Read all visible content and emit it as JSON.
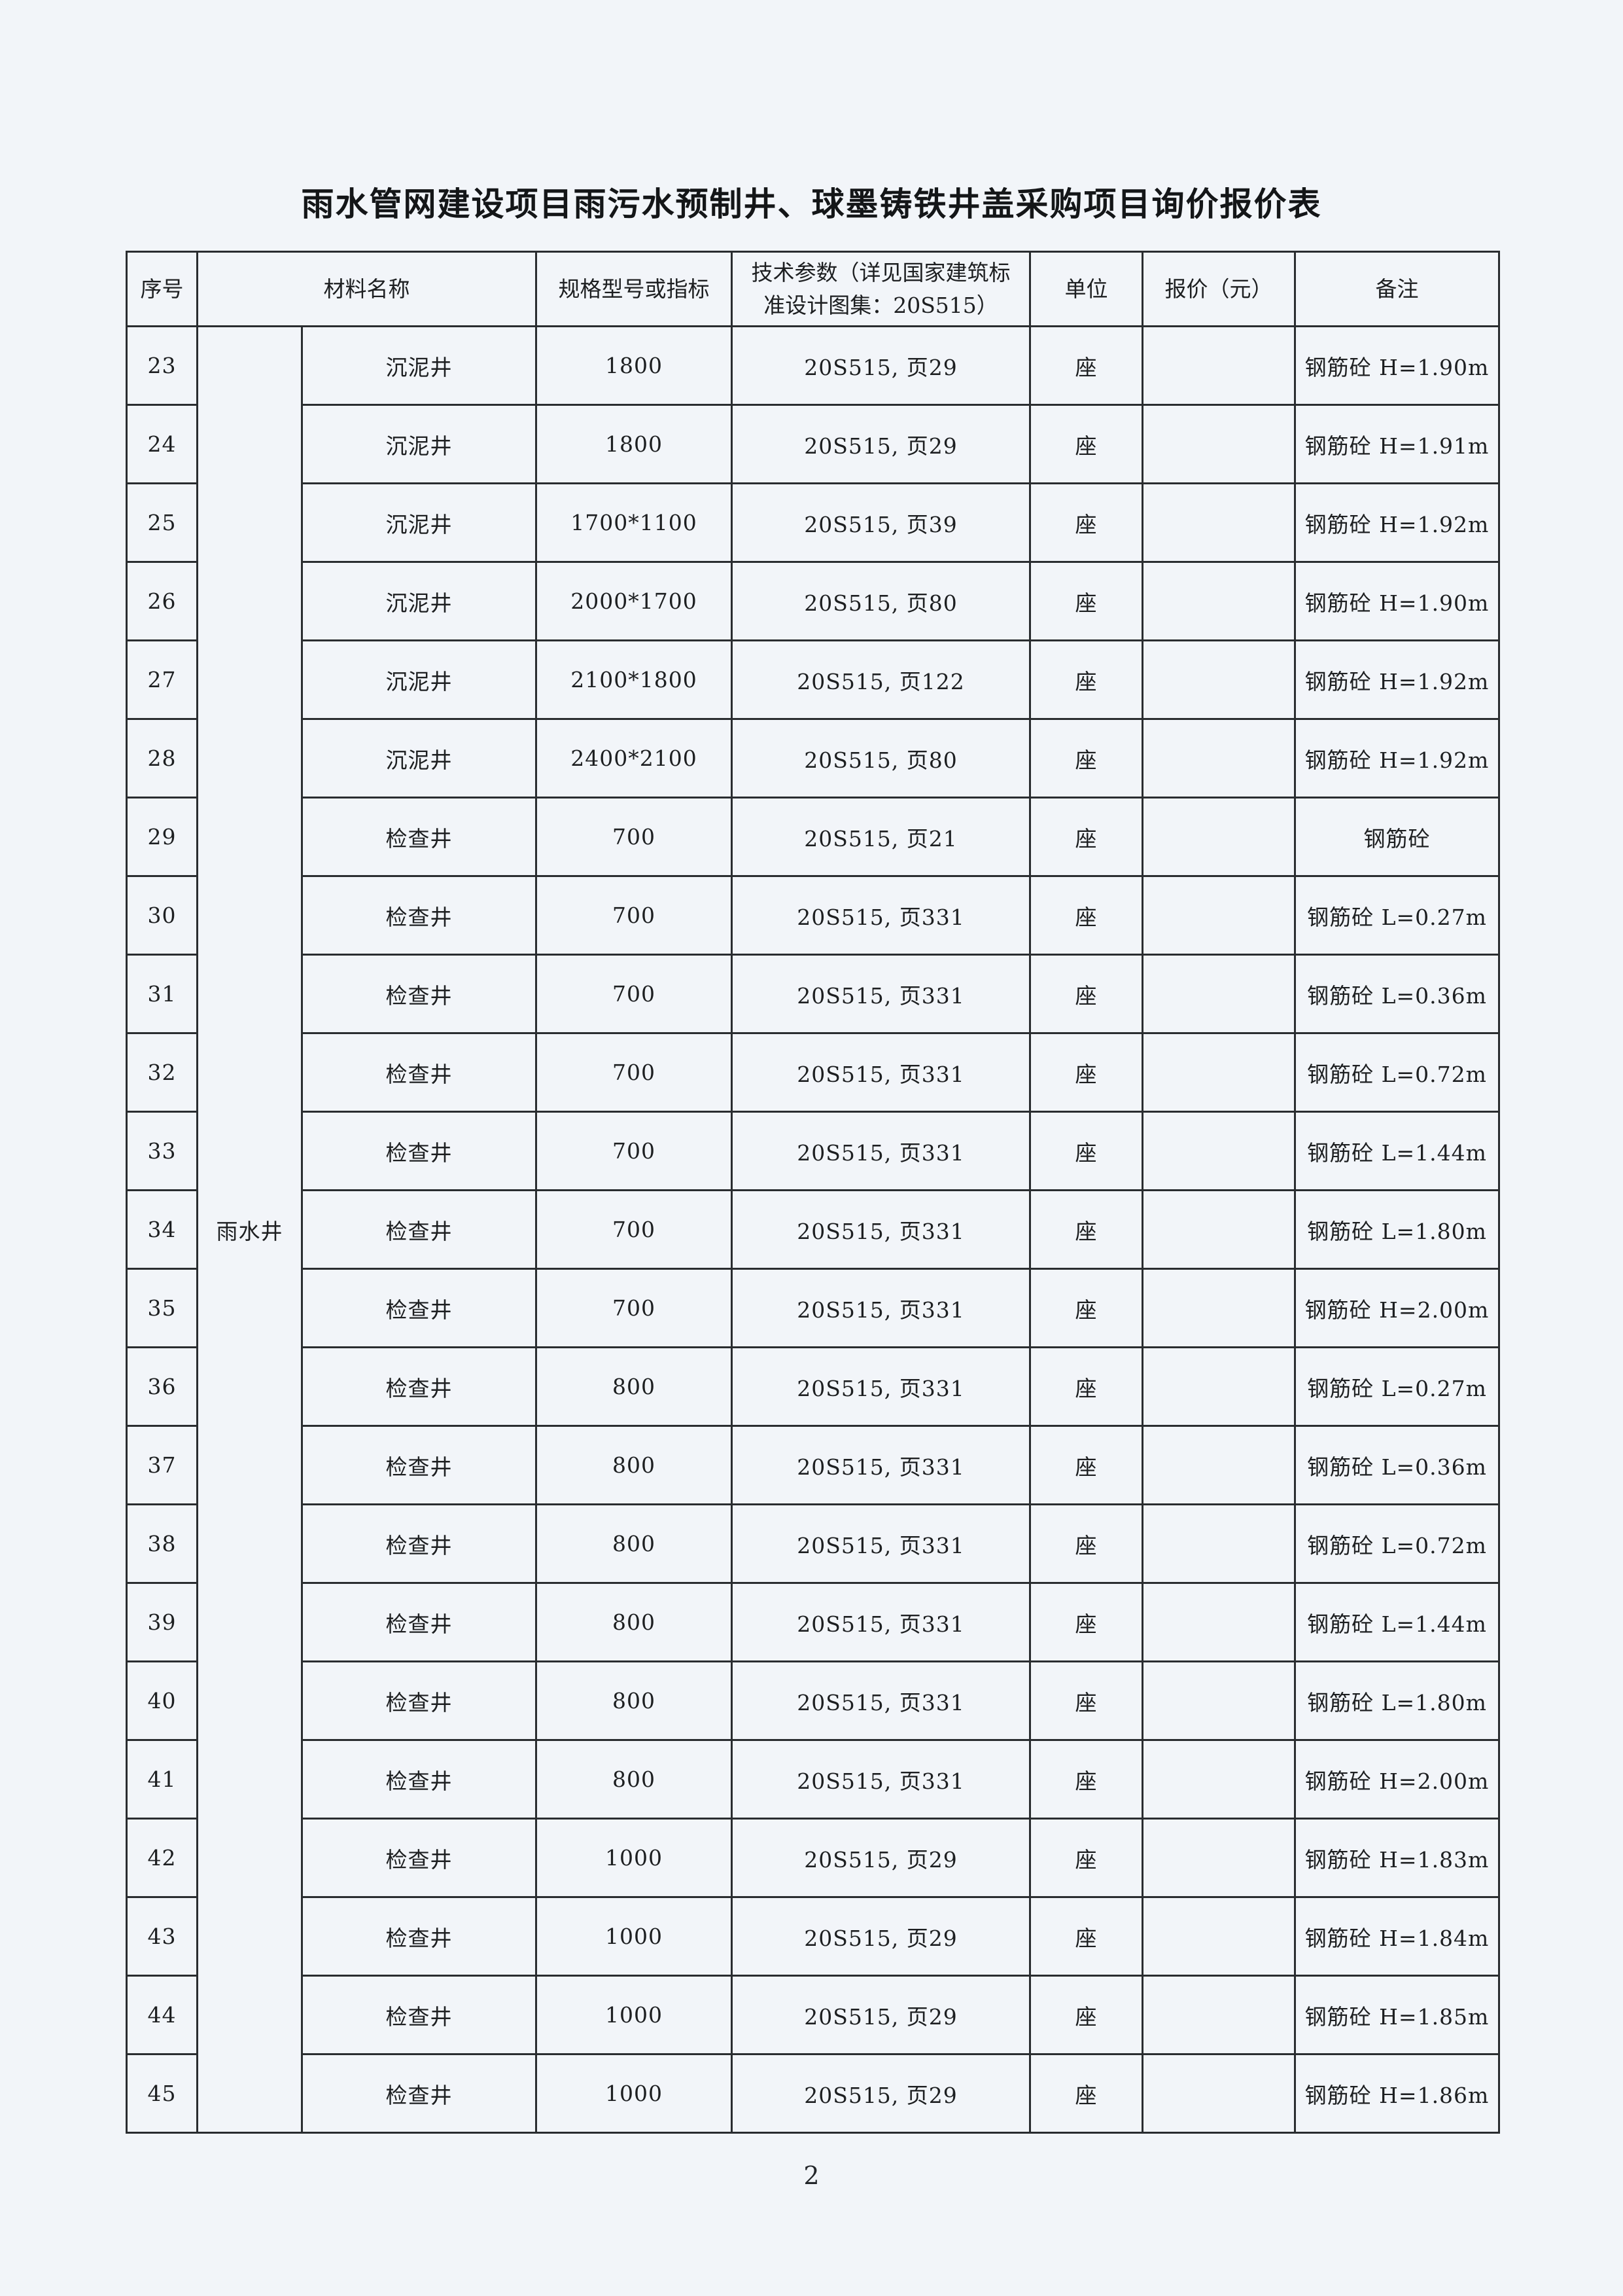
{
  "page": {
    "title": "雨水管网建设项目雨污水预制井、球墨铸铁井盖采购项目询价报价表",
    "page_number": "2"
  },
  "table": {
    "headers": {
      "index": "序号",
      "material": "材料名称",
      "spec": "规格型号或指标",
      "tech": "技术参数（详见国家建筑标准设计图集：20S515）",
      "unit": "单位",
      "price": "报价（元）",
      "remark": "备注"
    },
    "category": "雨水井",
    "rows": [
      {
        "no": "23",
        "name": "沉泥井",
        "spec": "1800",
        "tech": "20S515, 页29",
        "unit": "座",
        "price": "",
        "remark": "钢筋砼 H=1.90m"
      },
      {
        "no": "24",
        "name": "沉泥井",
        "spec": "1800",
        "tech": "20S515, 页29",
        "unit": "座",
        "price": "",
        "remark": "钢筋砼 H=1.91m"
      },
      {
        "no": "25",
        "name": "沉泥井",
        "spec": "1700*1100",
        "tech": "20S515, 页39",
        "unit": "座",
        "price": "",
        "remark": "钢筋砼 H=1.92m"
      },
      {
        "no": "26",
        "name": "沉泥井",
        "spec": "2000*1700",
        "tech": "20S515, 页80",
        "unit": "座",
        "price": "",
        "remark": "钢筋砼 H=1.90m"
      },
      {
        "no": "27",
        "name": "沉泥井",
        "spec": "2100*1800",
        "tech": "20S515, 页122",
        "unit": "座",
        "price": "",
        "remark": "钢筋砼 H=1.92m"
      },
      {
        "no": "28",
        "name": "沉泥井",
        "spec": "2400*2100",
        "tech": "20S515, 页80",
        "unit": "座",
        "price": "",
        "remark": "钢筋砼 H=1.92m"
      },
      {
        "no": "29",
        "name": "检查井",
        "spec": "700",
        "tech": "20S515, 页21",
        "unit": "座",
        "price": "",
        "remark": "钢筋砼"
      },
      {
        "no": "30",
        "name": "检查井",
        "spec": "700",
        "tech": "20S515, 页331",
        "unit": "座",
        "price": "",
        "remark": "钢筋砼 L=0.27m"
      },
      {
        "no": "31",
        "name": "检查井",
        "spec": "700",
        "tech": "20S515, 页331",
        "unit": "座",
        "price": "",
        "remark": "钢筋砼 L=0.36m"
      },
      {
        "no": "32",
        "name": "检查井",
        "spec": "700",
        "tech": "20S515, 页331",
        "unit": "座",
        "price": "",
        "remark": "钢筋砼 L=0.72m"
      },
      {
        "no": "33",
        "name": "检查井",
        "spec": "700",
        "tech": "20S515, 页331",
        "unit": "座",
        "price": "",
        "remark": "钢筋砼 L=1.44m"
      },
      {
        "no": "34",
        "name": "检查井",
        "spec": "700",
        "tech": "20S515, 页331",
        "unit": "座",
        "price": "",
        "remark": "钢筋砼 L=1.80m"
      },
      {
        "no": "35",
        "name": "检查井",
        "spec": "700",
        "tech": "20S515, 页331",
        "unit": "座",
        "price": "",
        "remark": "钢筋砼 H=2.00m"
      },
      {
        "no": "36",
        "name": "检查井",
        "spec": "800",
        "tech": "20S515, 页331",
        "unit": "座",
        "price": "",
        "remark": "钢筋砼 L=0.27m"
      },
      {
        "no": "37",
        "name": "检查井",
        "spec": "800",
        "tech": "20S515, 页331",
        "unit": "座",
        "price": "",
        "remark": "钢筋砼 L=0.36m"
      },
      {
        "no": "38",
        "name": "检查井",
        "spec": "800",
        "tech": "20S515, 页331",
        "unit": "座",
        "price": "",
        "remark": "钢筋砼 L=0.72m"
      },
      {
        "no": "39",
        "name": "检查井",
        "spec": "800",
        "tech": "20S515, 页331",
        "unit": "座",
        "price": "",
        "remark": "钢筋砼 L=1.44m"
      },
      {
        "no": "40",
        "name": "检查井",
        "spec": "800",
        "tech": "20S515, 页331",
        "unit": "座",
        "price": "",
        "remark": "钢筋砼 L=1.80m"
      },
      {
        "no": "41",
        "name": "检查井",
        "spec": "800",
        "tech": "20S515, 页331",
        "unit": "座",
        "price": "",
        "remark": "钢筋砼 H=2.00m"
      },
      {
        "no": "42",
        "name": "检查井",
        "spec": "1000",
        "tech": "20S515, 页29",
        "unit": "座",
        "price": "",
        "remark": "钢筋砼 H=1.83m"
      },
      {
        "no": "43",
        "name": "检查井",
        "spec": "1000",
        "tech": "20S515, 页29",
        "unit": "座",
        "price": "",
        "remark": "钢筋砼 H=1.84m"
      },
      {
        "no": "44",
        "name": "检查井",
        "spec": "1000",
        "tech": "20S515, 页29",
        "unit": "座",
        "price": "",
        "remark": "钢筋砼 H=1.85m"
      },
      {
        "no": "45",
        "name": "检查井",
        "spec": "1000",
        "tech": "20S515, 页29",
        "unit": "座",
        "price": "",
        "remark": "钢筋砼 H=1.86m"
      }
    ]
  }
}
